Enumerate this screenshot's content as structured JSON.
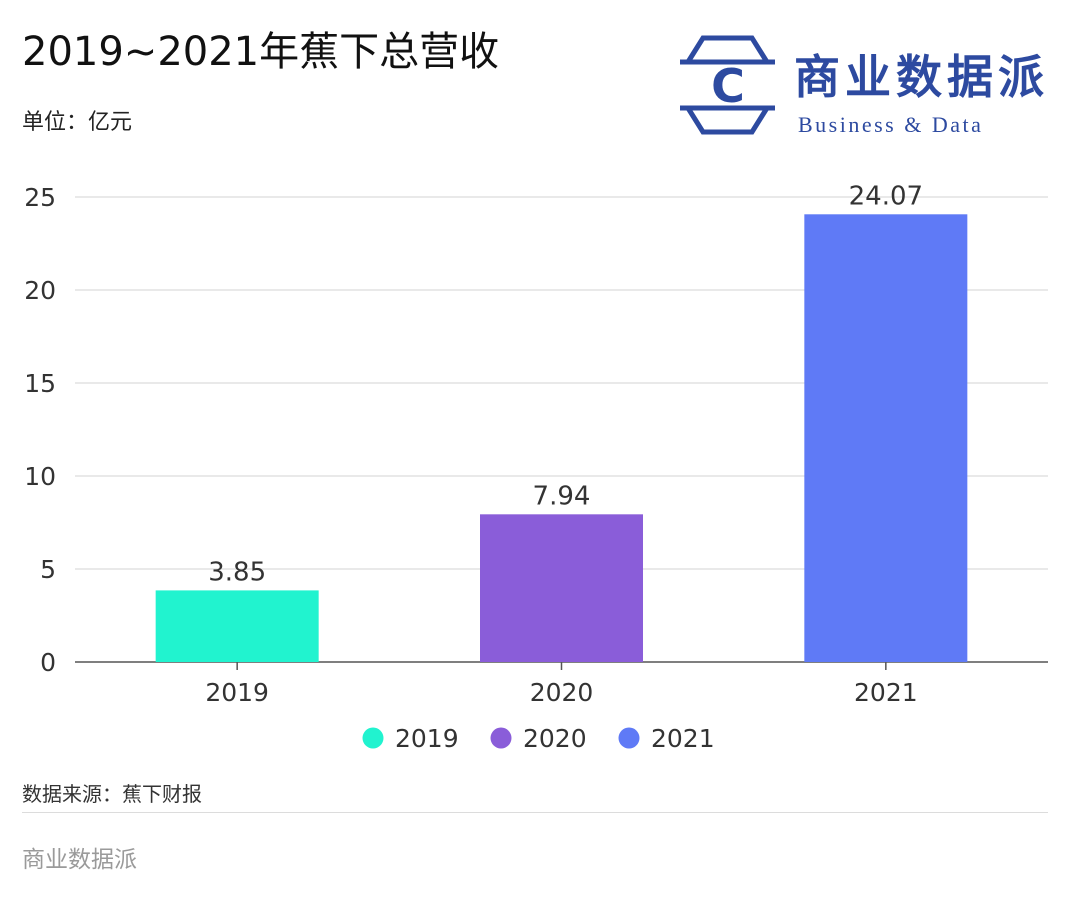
{
  "chart_data": {
    "type": "bar",
    "title": "2019~2021年蕉下总营收",
    "subtitle": "单位：亿元",
    "categories": [
      "2019",
      "2020",
      "2021"
    ],
    "values": [
      3.85,
      7.94,
      24.07
    ],
    "colors": [
      "#21f3cf",
      "#8a5dd9",
      "#5f7af6"
    ],
    "ylim": [
      0,
      25
    ],
    "yticks": [
      0,
      5,
      10,
      15,
      20,
      25
    ],
    "grid": true,
    "legend": {
      "position": "bottom"
    }
  },
  "logo": {
    "letter": "C",
    "name_cn": "商业数据派",
    "name_en": "Business & Data",
    "color": "#2d4aa0"
  },
  "footer": {
    "source": "数据来源：蕉下财报",
    "brand": "商业数据派"
  }
}
